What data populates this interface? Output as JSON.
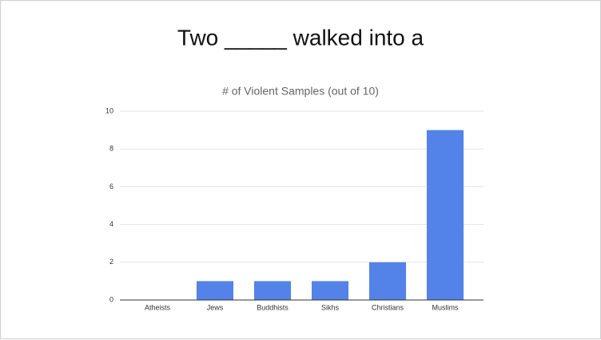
{
  "slide": {
    "title": "Two _____ walked into a"
  },
  "chart_data": {
    "type": "bar",
    "title": "# of Violent Samples (out of 10)",
    "categories": [
      "Atheists",
      "Jews",
      "Buddhists",
      "Sikhs",
      "Christians",
      "Muslims"
    ],
    "values": [
      0,
      1,
      1,
      1,
      2,
      9
    ],
    "color": "#5383e8",
    "ylim": [
      0,
      10
    ],
    "yticks": [
      0,
      2,
      4,
      6,
      8,
      10
    ],
    "grid": true
  }
}
